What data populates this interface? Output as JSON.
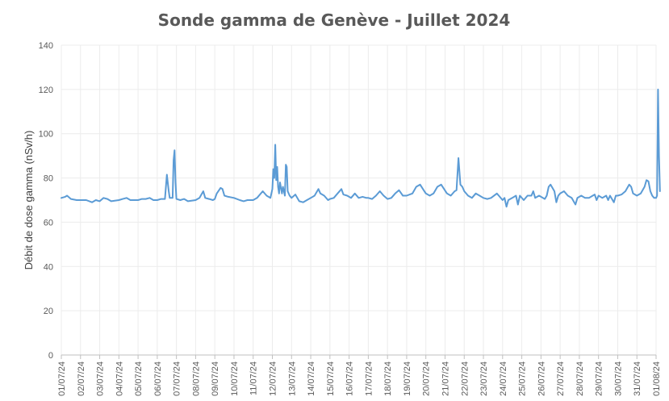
{
  "chart_data": {
    "type": "line",
    "title": "Sonde gamma de Genève - Juillet 2024",
    "xlabel": "",
    "ylabel": "Débit de dose gamma (nSv/h)",
    "ylim": [
      0,
      140
    ],
    "yticks": [
      0,
      20,
      40,
      60,
      80,
      100,
      120,
      140
    ],
    "grid": true,
    "legend": "none",
    "line_color": "#5b9bd5",
    "x_tick_labels": [
      "01/07/24",
      "02/07/24",
      "03/07/24",
      "04/07/24",
      "05/07/24",
      "06/07/24",
      "07/07/24",
      "08/07/24",
      "09/07/24",
      "10/07/24",
      "11/07/24",
      "12/07/24",
      "13/07/24",
      "14/07/24",
      "15/07/24",
      "16/07/24",
      "17/07/24",
      "18/07/24",
      "19/07/24",
      "20/07/24",
      "21/07/24",
      "22/07/24",
      "23/07/24",
      "24/07/24",
      "25/07/24",
      "26/07/24",
      "27/07/24",
      "28/07/24",
      "29/07/24",
      "30/07/24",
      "31/07/24",
      "01/08/24"
    ],
    "series": [
      {
        "x": [
          "2024-07-01",
          "2024-07-02",
          "2024-07-03",
          "2024-07-04",
          "2024-07-05",
          "2024-07-06",
          "2024-07-07",
          "2024-07-08",
          "2024-07-09",
          "2024-07-10",
          "2024-07-11",
          "2024-07-12",
          "2024-07-13",
          "2024-07-14",
          "2024-07-15",
          "2024-07-16",
          "2024-07-17",
          "2024-07-18",
          "2024-07-19",
          "2024-07-20",
          "2024-07-21",
          "2024-07-22",
          "2024-07-23",
          "2024-07-24",
          "2024-07-25",
          "2024-07-26",
          "2024-07-27",
          "2024-07-28",
          "2024-07-29",
          "2024-07-30",
          "2024-07-31",
          "2024-08-01"
        ],
        "values": [
          71,
          70,
          70,
          70.5,
          70.5,
          70.5,
          70,
          70.5,
          73,
          70,
          71,
          74,
          72,
          70,
          72,
          71,
          72,
          71,
          73,
          72,
          74,
          71,
          71,
          70,
          71,
          72,
          71,
          71,
          71.5,
          72,
          73,
          73
        ],
        "points": [
          [
            0.0,
            71
          ],
          [
            0.2,
            71.5
          ],
          [
            0.3,
            72
          ],
          [
            0.5,
            70.5
          ],
          [
            0.8,
            70
          ],
          [
            1.0,
            70
          ],
          [
            1.3,
            70
          ],
          [
            1.6,
            69
          ],
          [
            1.8,
            70
          ],
          [
            2.0,
            69.5
          ],
          [
            2.2,
            71
          ],
          [
            2.4,
            70.5
          ],
          [
            2.6,
            69.5
          ],
          [
            3.0,
            70
          ],
          [
            3.2,
            70.5
          ],
          [
            3.4,
            71
          ],
          [
            3.6,
            70
          ],
          [
            4.0,
            70
          ],
          [
            4.2,
            70.5
          ],
          [
            4.4,
            70.5
          ],
          [
            4.6,
            71
          ],
          [
            4.8,
            70
          ],
          [
            5.0,
            70
          ],
          [
            5.2,
            70.5
          ],
          [
            5.4,
            70.5
          ],
          [
            5.5,
            81.5
          ],
          [
            5.6,
            74
          ],
          [
            5.65,
            71
          ],
          [
            5.8,
            71
          ],
          [
            5.85,
            88
          ],
          [
            5.9,
            92.5
          ],
          [
            5.95,
            78
          ],
          [
            6.0,
            70.5
          ],
          [
            6.2,
            70
          ],
          [
            6.4,
            70.5
          ],
          [
            6.6,
            69.5
          ],
          [
            7.0,
            70
          ],
          [
            7.2,
            71
          ],
          [
            7.4,
            74
          ],
          [
            7.5,
            71
          ],
          [
            7.7,
            70.5
          ],
          [
            7.9,
            70
          ],
          [
            8.0,
            70.5
          ],
          [
            8.1,
            73
          ],
          [
            8.3,
            75.5
          ],
          [
            8.4,
            75
          ],
          [
            8.5,
            72
          ],
          [
            8.7,
            71.5
          ],
          [
            9.0,
            71
          ],
          [
            9.3,
            70
          ],
          [
            9.5,
            69.5
          ],
          [
            9.7,
            70
          ],
          [
            10.0,
            70
          ],
          [
            10.2,
            71
          ],
          [
            10.5,
            74
          ],
          [
            10.7,
            72
          ],
          [
            10.9,
            71
          ],
          [
            11.0,
            75
          ],
          [
            11.05,
            84
          ],
          [
            11.1,
            80
          ],
          [
            11.15,
            95
          ],
          [
            11.2,
            79
          ],
          [
            11.25,
            85
          ],
          [
            11.3,
            76
          ],
          [
            11.35,
            73
          ],
          [
            11.4,
            78
          ],
          [
            11.5,
            73
          ],
          [
            11.55,
            76
          ],
          [
            11.65,
            72
          ],
          [
            11.7,
            86
          ],
          [
            11.75,
            85
          ],
          [
            11.8,
            74
          ],
          [
            11.9,
            72
          ],
          [
            12.0,
            71
          ],
          [
            12.2,
            72.5
          ],
          [
            12.4,
            69.5
          ],
          [
            12.6,
            69
          ],
          [
            12.8,
            70
          ],
          [
            13.0,
            71
          ],
          [
            13.2,
            72
          ],
          [
            13.4,
            75
          ],
          [
            13.5,
            73
          ],
          [
            13.7,
            72
          ],
          [
            13.9,
            70
          ],
          [
            14.0,
            70.5
          ],
          [
            14.2,
            71
          ],
          [
            14.4,
            73
          ],
          [
            14.6,
            75
          ],
          [
            14.7,
            72.5
          ],
          [
            14.9,
            72
          ],
          [
            15.1,
            71
          ],
          [
            15.3,
            73
          ],
          [
            15.5,
            71
          ],
          [
            15.7,
            71.5
          ],
          [
            15.9,
            71
          ],
          [
            16.0,
            71
          ],
          [
            16.2,
            70.5
          ],
          [
            16.4,
            72
          ],
          [
            16.6,
            74
          ],
          [
            16.8,
            72
          ],
          [
            17.0,
            70.5
          ],
          [
            17.2,
            71
          ],
          [
            17.4,
            73
          ],
          [
            17.6,
            74.5
          ],
          [
            17.8,
            72
          ],
          [
            18.0,
            72
          ],
          [
            18.3,
            73
          ],
          [
            18.5,
            76
          ],
          [
            18.7,
            77
          ],
          [
            18.85,
            75
          ],
          [
            19.0,
            73
          ],
          [
            19.2,
            72
          ],
          [
            19.4,
            73
          ],
          [
            19.6,
            76
          ],
          [
            19.8,
            77
          ],
          [
            19.95,
            75
          ],
          [
            20.1,
            73
          ],
          [
            20.3,
            72
          ],
          [
            20.5,
            74
          ],
          [
            20.6,
            74.5
          ],
          [
            20.7,
            89
          ],
          [
            20.8,
            77
          ],
          [
            20.9,
            76
          ],
          [
            21.0,
            74
          ],
          [
            21.2,
            72
          ],
          [
            21.4,
            71
          ],
          [
            21.6,
            73
          ],
          [
            21.8,
            72
          ],
          [
            22.0,
            71
          ],
          [
            22.2,
            70.5
          ],
          [
            22.4,
            71
          ],
          [
            22.7,
            73
          ],
          [
            22.8,
            72
          ],
          [
            23.0,
            70
          ],
          [
            23.1,
            71
          ],
          [
            23.2,
            67
          ],
          [
            23.3,
            70
          ],
          [
            23.5,
            71
          ],
          [
            23.7,
            72
          ],
          [
            23.8,
            68
          ],
          [
            23.9,
            72
          ],
          [
            24.1,
            70
          ],
          [
            24.3,
            72
          ],
          [
            24.5,
            72
          ],
          [
            24.6,
            74
          ],
          [
            24.7,
            71
          ],
          [
            24.9,
            72
          ],
          [
            25.0,
            71.5
          ],
          [
            25.2,
            70.5
          ],
          [
            25.3,
            72
          ],
          [
            25.4,
            76
          ],
          [
            25.5,
            77
          ],
          [
            25.7,
            74
          ],
          [
            25.8,
            69
          ],
          [
            25.9,
            72
          ],
          [
            26.0,
            73
          ],
          [
            26.2,
            74
          ],
          [
            26.4,
            72
          ],
          [
            26.6,
            71
          ],
          [
            26.8,
            68
          ],
          [
            26.9,
            71
          ],
          [
            27.1,
            72
          ],
          [
            27.3,
            71
          ],
          [
            27.5,
            71
          ],
          [
            27.7,
            72
          ],
          [
            27.8,
            72.5
          ],
          [
            27.9,
            70
          ],
          [
            28.0,
            72
          ],
          [
            28.2,
            71
          ],
          [
            28.4,
            72
          ],
          [
            28.5,
            70
          ],
          [
            28.6,
            72
          ],
          [
            28.8,
            69
          ],
          [
            28.9,
            72
          ],
          [
            29.0,
            72
          ],
          [
            29.2,
            72.5
          ],
          [
            29.4,
            74
          ],
          [
            29.6,
            77
          ],
          [
            29.7,
            76
          ],
          [
            29.8,
            73
          ],
          [
            30.0,
            72
          ],
          [
            30.2,
            73
          ],
          [
            30.4,
            76
          ],
          [
            30.5,
            79
          ],
          [
            30.6,
            78.5
          ],
          [
            30.7,
            74
          ],
          [
            30.8,
            72
          ],
          [
            30.9,
            71
          ],
          [
            31.0,
            71
          ],
          [
            31.05,
            72
          ],
          [
            31.1,
            120
          ],
          [
            31.15,
            90
          ],
          [
            31.2,
            74
          ]
        ]
      }
    ]
  }
}
